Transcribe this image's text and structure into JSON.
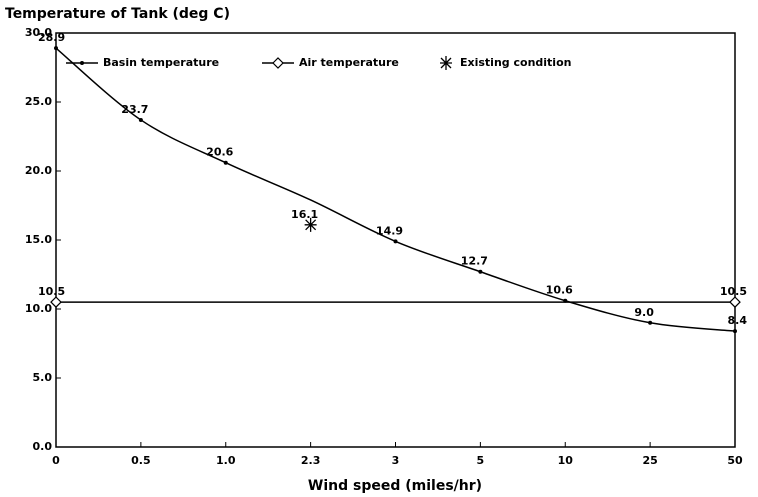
{
  "chart_data": {
    "type": "line",
    "title": "Temperature of Tank (deg C)",
    "x_label": "Wind speed (miles/hr)",
    "categories": [
      "0",
      "0.5",
      "1.0",
      "2.3",
      "3",
      "5",
      "10",
      "25",
      "50"
    ],
    "series": [
      {
        "name": "Basin temperature",
        "color": "#000000",
        "marker": "dot",
        "line": true,
        "values": [
          28.9,
          23.7,
          20.6,
          17.9,
          14.9,
          12.7,
          10.6,
          9.0,
          8.4
        ],
        "value_labels": [
          "28.9",
          "23.7",
          "20.6",
          null,
          "14.9",
          "12.7",
          "10.6",
          "9.0",
          "8.4"
        ]
      },
      {
        "name": "Air temperature",
        "color": "#000000",
        "marker": "diamond",
        "line": true,
        "values": [
          10.5,
          10.5,
          10.5,
          10.5,
          10.5,
          10.5,
          10.5,
          10.5,
          10.5
        ],
        "value_labels": [
          "10.5",
          null,
          null,
          null,
          null,
          null,
          null,
          null,
          "10.5"
        ]
      },
      {
        "name": "Existing condition",
        "color": "#000000",
        "marker": "asterisk",
        "line": false,
        "values": [
          null,
          null,
          null,
          16.1,
          null,
          null,
          null,
          null,
          null
        ],
        "value_labels": [
          null,
          null,
          null,
          "16.1",
          null,
          null,
          null,
          null,
          null
        ]
      }
    ],
    "ylim": [
      0,
      30
    ],
    "yticks": [
      {
        "value": 0,
        "label": "0.0"
      },
      {
        "value": 5,
        "label": "5.0"
      },
      {
        "value": 10,
        "label": "10.0"
      },
      {
        "value": 15,
        "label": "15.0"
      },
      {
        "value": 20,
        "label": "20.0"
      },
      {
        "value": 25,
        "label": "25.0"
      },
      {
        "value": 30,
        "label": "30.0"
      }
    ],
    "grid": false
  }
}
